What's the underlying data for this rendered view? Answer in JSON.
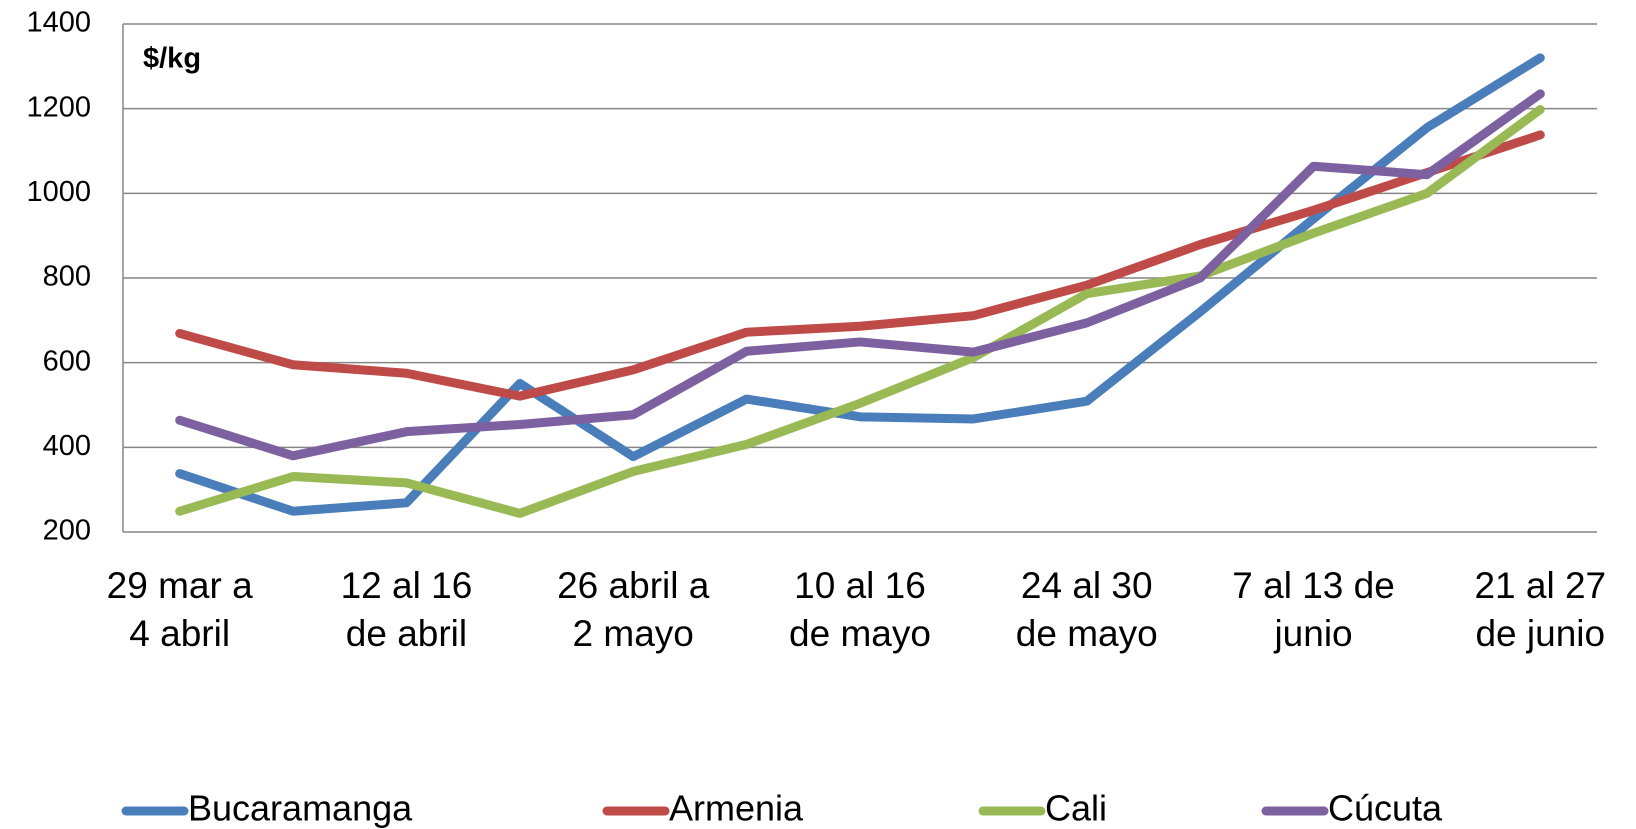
{
  "chart_data": {
    "type": "line",
    "annotation": "$/kg",
    "categories": [
      "29 mar a\n4 abril",
      null,
      "12 al 16\nde abril",
      null,
      "26 abril a\n2 mayo",
      null,
      "10 al 16\nde mayo",
      null,
      "24 al 30\nde mayo",
      null,
      "7 al 13 de\njunio",
      null,
      "21 al 27\nde junio"
    ],
    "series": [
      {
        "name": "Bucaramanga",
        "color": "#4a7ebb",
        "values": [
          338,
          249,
          269,
          551,
          378,
          514,
          472,
          467,
          509,
          720,
          940,
          1155,
          1320
        ]
      },
      {
        "name": "Armenia",
        "color": "#be4b48",
        "values": [
          669,
          595,
          575,
          521,
          583,
          672,
          686,
          711,
          783,
          879,
          960,
          1049,
          1138
        ]
      },
      {
        "name": "Cali",
        "color": "#98b954",
        "values": [
          249,
          331,
          316,
          244,
          343,
          407,
          504,
          612,
          763,
          805,
          906,
          1000,
          1198
        ]
      },
      {
        "name": "Cúcuta",
        "color": "#7d60a0",
        "values": [
          464,
          380,
          437,
          454,
          477,
          627,
          649,
          625,
          694,
          800,
          1064,
          1044,
          1235
        ]
      }
    ],
    "ylim": [
      200,
      1400
    ],
    "yticks": [
      200,
      400,
      600,
      800,
      1000,
      1200,
      1400
    ],
    "grid": true,
    "legend": "bottom"
  }
}
